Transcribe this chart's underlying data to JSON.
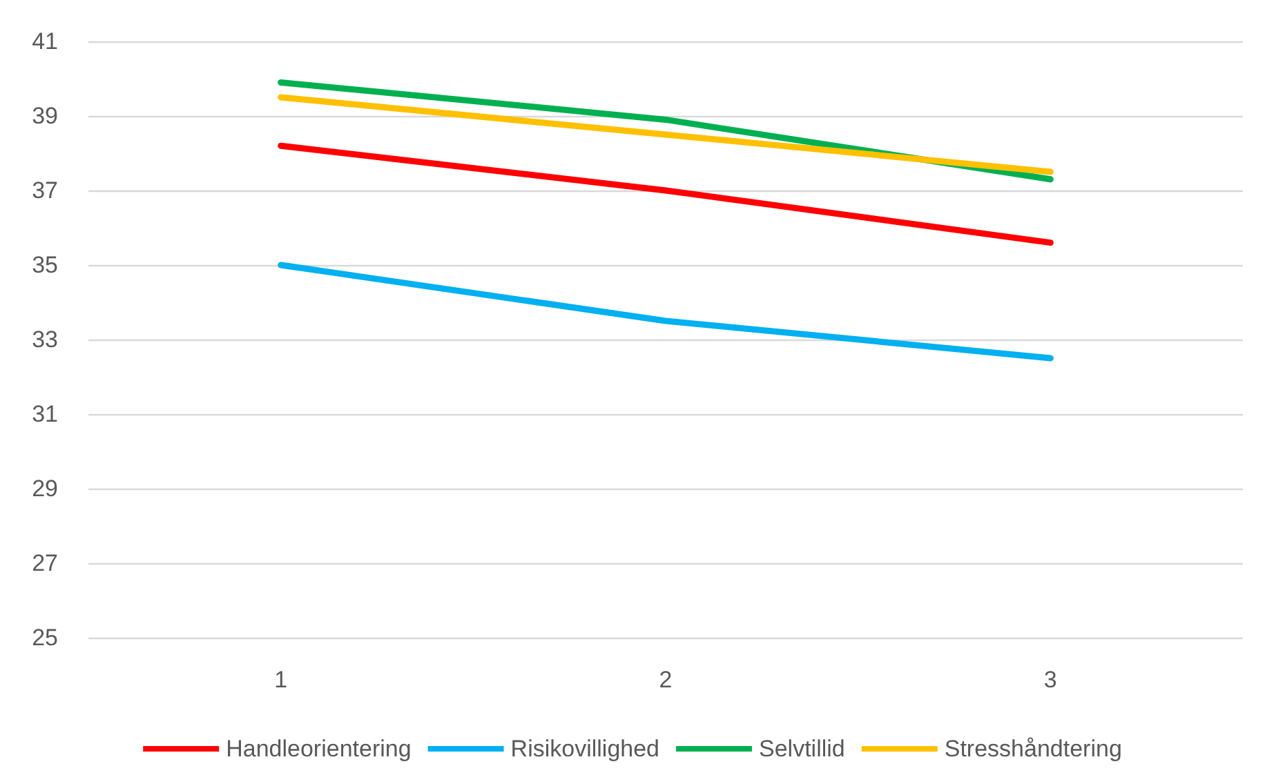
{
  "chart_data": {
    "type": "line",
    "categories": [
      "1",
      "2",
      "3"
    ],
    "series": [
      {
        "name": "Handleorientering",
        "color": "#ff0000",
        "values": [
          38.2,
          37.0,
          35.6
        ]
      },
      {
        "name": "Risikovillighed",
        "color": "#00b0f0",
        "values": [
          35.0,
          33.5,
          32.5
        ]
      },
      {
        "name": "Selvtillid",
        "color": "#00b050",
        "values": [
          39.9,
          38.9,
          37.3
        ]
      },
      {
        "name": "Stresshåndtering",
        "color": "#ffc000",
        "values": [
          39.5,
          38.5,
          37.5
        ]
      }
    ],
    "ylim": [
      25,
      41
    ],
    "yticks": [
      25,
      27,
      29,
      31,
      33,
      35,
      37,
      39,
      41
    ],
    "grid": "y",
    "legend": "bottom",
    "marker": "none",
    "line_style": "solid"
  }
}
